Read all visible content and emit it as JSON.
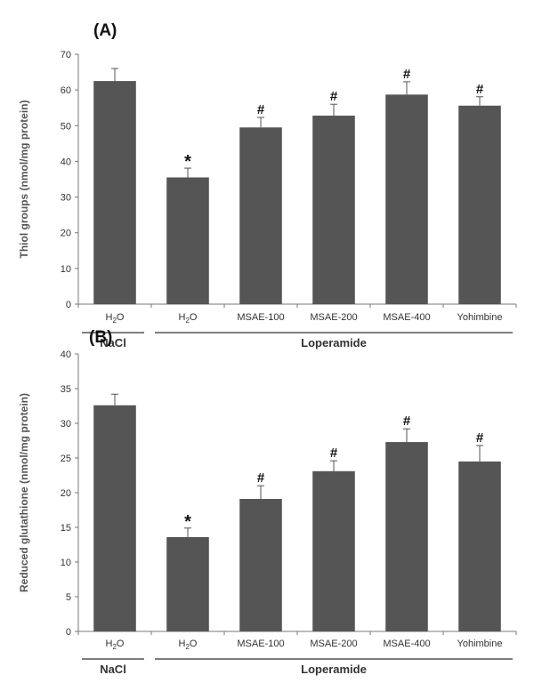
{
  "colors": {
    "bar": "#555555",
    "axis": "#777777",
    "text": "#333333",
    "label": "#555555"
  },
  "chart_data": [
    {
      "type": "bar",
      "panel_label": "(A)",
      "ylabel": "Thiol groups (nmol/mg protein)",
      "ylim": [
        0,
        70
      ],
      "yticks": [
        0,
        10,
        20,
        30,
        40,
        50,
        60,
        70
      ],
      "categories": [
        "H2O",
        "H2O",
        "MSAE-100",
        "MSAE-200",
        "MSAE-400",
        "Yohimbine"
      ],
      "values": [
        62.5,
        35.5,
        49.5,
        52.8,
        58.7,
        55.6
      ],
      "errors": [
        3.5,
        2.6,
        2.8,
        3.2,
        3.6,
        2.5
      ],
      "annotations": [
        "",
        "*",
        "#",
        "#",
        "#",
        "#"
      ],
      "groups": [
        {
          "label": "NaCl",
          "start": 0,
          "end": 0
        },
        {
          "label": "Loperamide",
          "start": 1,
          "end": 5
        }
      ],
      "grid": false
    },
    {
      "type": "bar",
      "panel_label": "(B)",
      "ylabel": "Reduced glutathione (nmol/mg protein)",
      "ylim": [
        0,
        40
      ],
      "yticks": [
        0,
        5,
        10,
        15,
        20,
        25,
        30,
        35,
        40
      ],
      "categories": [
        "H2O",
        "H2O",
        "MSAE-100",
        "MSAE-200",
        "MSAE-400",
        "Yohimbine"
      ],
      "values": [
        32.6,
        13.6,
        19.1,
        23.1,
        27.3,
        24.5
      ],
      "errors": [
        1.6,
        1.3,
        1.9,
        1.5,
        1.9,
        2.3
      ],
      "annotations": [
        "",
        "*",
        "#",
        "#",
        "#",
        "#"
      ],
      "groups": [
        {
          "label": "NaCl",
          "start": 0,
          "end": 0
        },
        {
          "label": "Loperamide",
          "start": 1,
          "end": 5
        }
      ],
      "grid": false
    }
  ]
}
